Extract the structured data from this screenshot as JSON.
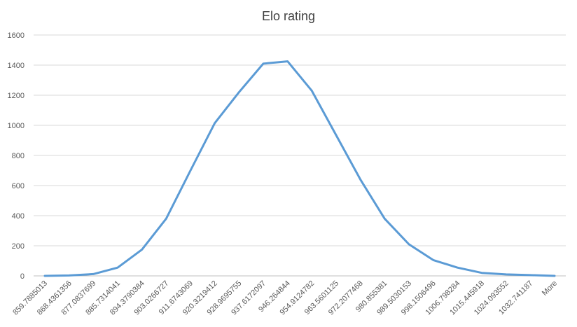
{
  "chart_data": {
    "type": "line",
    "title": "Elo rating",
    "xlabel": "",
    "ylabel": "",
    "categories": [
      "859.7885013",
      "868.4361356",
      "877.0837699",
      "885.7314041",
      "894.3790384",
      "903.0266727",
      "911.6743069",
      "920.3219412",
      "928.9695755",
      "937.6172097",
      "946.264844",
      "954.9124782",
      "963.5601125",
      "972.2077468",
      "980.855381",
      "989.5030153",
      "998.1506496",
      "1006.798284",
      "1015.445918",
      "1024.093552",
      "1032.741187",
      "More"
    ],
    "series": [
      {
        "values": [
          0,
          3,
          12,
          55,
          175,
          380,
          700,
          1015,
          1220,
          1410,
          1425,
          1230,
          935,
          640,
          380,
          210,
          105,
          55,
          20,
          10,
          5,
          0
        ]
      }
    ],
    "ylim": [
      0,
      1600
    ],
    "yticks": [
      0,
      200,
      400,
      600,
      800,
      1000,
      1200,
      1400,
      1600
    ],
    "grid": true,
    "legend": "none",
    "colors": {
      "series": "#5b9bd5"
    }
  }
}
